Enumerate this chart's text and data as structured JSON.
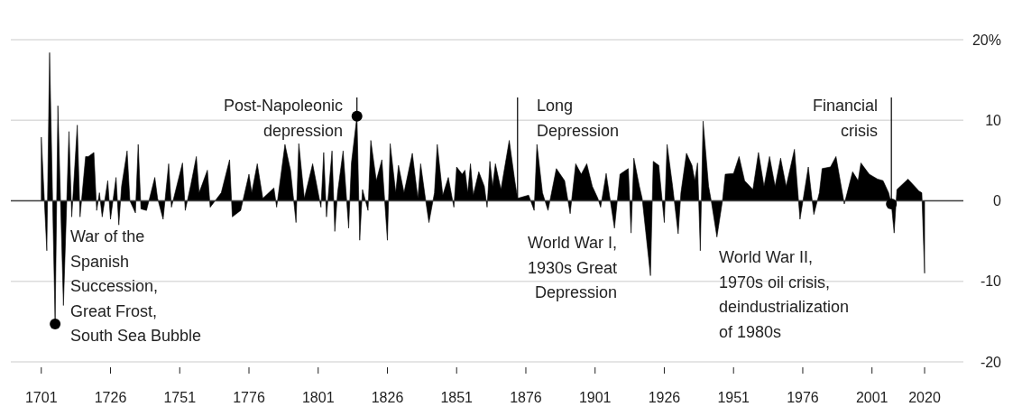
{
  "chart_data": {
    "type": "area",
    "series": [
      {
        "color": "#000000",
        "x": [
          1701,
          1703,
          1704,
          1706,
          1707,
          1709,
          1711,
          1712,
          1714,
          1715,
          1717,
          1718,
          1720,
          1721,
          1722,
          1723,
          1725,
          1726,
          1728,
          1729,
          1730,
          1732,
          1733,
          1735,
          1736,
          1737,
          1739,
          1742,
          1743,
          1745,
          1747,
          1748,
          1752,
          1753,
          1755,
          1757,
          1758,
          1761,
          1762,
          1766,
          1769,
          1770,
          1773,
          1776,
          1777,
          1779,
          1781,
          1785,
          1786,
          1789,
          1791,
          1793,
          1794,
          1796,
          1799,
          1802,
          1803,
          1804,
          1806,
          1807,
          1808,
          1810,
          1812,
          1813,
          1815,
          1816,
          1817,
          1819,
          1820,
          1822,
          1824,
          1826,
          1827,
          1829,
          1830,
          1832,
          1835,
          1837,
          1838,
          1840,
          1841,
          1843,
          1844,
          1846,
          1848,
          1850,
          1851,
          1853,
          1854,
          1855,
          1856,
          1857,
          1859,
          1861,
          1862,
          1863,
          1864,
          1865,
          1867,
          1870,
          1872,
          1873,
          1877,
          1879,
          1880,
          1882,
          1884,
          1887,
          1890,
          1892,
          1894,
          1896,
          1898,
          1900,
          1902,
          1903,
          1905,
          1908,
          1910,
          1913,
          1914,
          1915,
          1917,
          1918,
          1921,
          1922,
          1924,
          1926,
          1927,
          1929,
          1931,
          1932,
          1934,
          1936,
          1937,
          1938,
          1939,
          1940,
          1942,
          1943,
          1945,
          1947,
          1948,
          1951,
          1953,
          1955,
          1958,
          1960,
          1962,
          1964,
          1966,
          1968,
          1970,
          1973,
          1975,
          1978,
          1980,
          1982,
          1983,
          1986,
          1988,
          1991,
          1994,
          1996,
          1997,
          2000,
          2003,
          2005,
          2007,
          2008,
          2009,
          2010,
          2014,
          2018,
          2019,
          2020
        ],
        "values": [
          7.9,
          -6.2,
          18.4,
          -15.3,
          11.8,
          -13,
          8.6,
          -2,
          9.4,
          -2,
          5.5,
          5.5,
          6,
          -1.2,
          1,
          -2,
          2.5,
          -2.3,
          2.9,
          -3,
          1.8,
          6.2,
          0,
          -1.5,
          7,
          -1,
          -1.2,
          2.9,
          0.3,
          -2.3,
          4.6,
          -0.8,
          4.7,
          -1.2,
          2,
          5.5,
          1,
          3.8,
          -0.8,
          1,
          5.1,
          -2,
          -1.2,
          3.3,
          1,
          4.6,
          0.3,
          1.6,
          -0.8,
          7,
          3.8,
          -2.7,
          7.1,
          0.3,
          4.6,
          -0.8,
          6,
          -2,
          6.2,
          -3.8,
          1,
          6.2,
          -3.4,
          4.7,
          10.5,
          -4.9,
          1.4,
          -1.2,
          7.5,
          2.5,
          5.1,
          -4.9,
          7.1,
          1,
          4.4,
          1,
          5.9,
          0.3,
          4.6,
          -0.4,
          -2.7,
          1,
          7,
          0.7,
          2.9,
          -0.8,
          4.2,
          3.3,
          3.8,
          1,
          4.6,
          0.7,
          3.6,
          1.8,
          -0.8,
          4.9,
          1.8,
          4.6,
          1.4,
          7.5,
          2.5,
          0.3,
          0.7,
          -1.2,
          7,
          1,
          -1.2,
          4,
          2.5,
          -1.6,
          4.6,
          3.3,
          4.6,
          1.8,
          0.3,
          -0.8,
          3.4,
          -3.4,
          3.3,
          4,
          -4,
          5.3,
          1.8,
          0.3,
          -9.3,
          4.9,
          4.4,
          -2.7,
          7,
          1.8,
          -4.1,
          1,
          5.9,
          4.4,
          2.5,
          4.7,
          -6.2,
          9.9,
          1.8,
          -0.1,
          -4.5,
          0,
          3.3,
          3.4,
          5.5,
          2.5,
          1.4,
          6,
          1.8,
          5.5,
          1.8,
          5.3,
          1.8,
          6.4,
          -2.3,
          4.2,
          -1.7,
          1,
          4,
          4.2,
          5.5,
          -0.4,
          3.6,
          2.5,
          4.7,
          3.3,
          2.7,
          2.5,
          1,
          -0.4,
          -4,
          1.4,
          2.7,
          1.2,
          1,
          -9
        ]
      }
    ],
    "xlim": [
      1690,
      2034
    ],
    "xticks": [
      1701,
      1726,
      1751,
      1776,
      1801,
      1826,
      1851,
      1876,
      1901,
      1926,
      1951,
      1976,
      2001,
      2020
    ],
    "ylim": [
      -20,
      20
    ],
    "yticks": [
      {
        "value": 20,
        "label": "20%"
      },
      10,
      0,
      -10,
      -20
    ],
    "grid": "y",
    "annotations": [
      {
        "text": "War of the\nSpanish\nSuccession,\nGreat Frost,\nSouth Sea Bubble",
        "x": 1706,
        "y": -15.3
      },
      {
        "text": "Post-Napoleonic\ndepression",
        "x": 1815,
        "y": 10.5
      },
      {
        "text": "Long\nDepression",
        "x": 1873,
        "y": 0.3
      },
      "World War I,\n1930s Great\nDepression",
      {
        "text": "World War II,\n1970s oil crisis,\ndeindustrialization\nof 1980s",
        "x": 1939,
        "y": -6.2
      },
      {
        "text": "Financial\ncrisis",
        "x": 2008,
        "y": -0.4
      }
    ]
  }
}
